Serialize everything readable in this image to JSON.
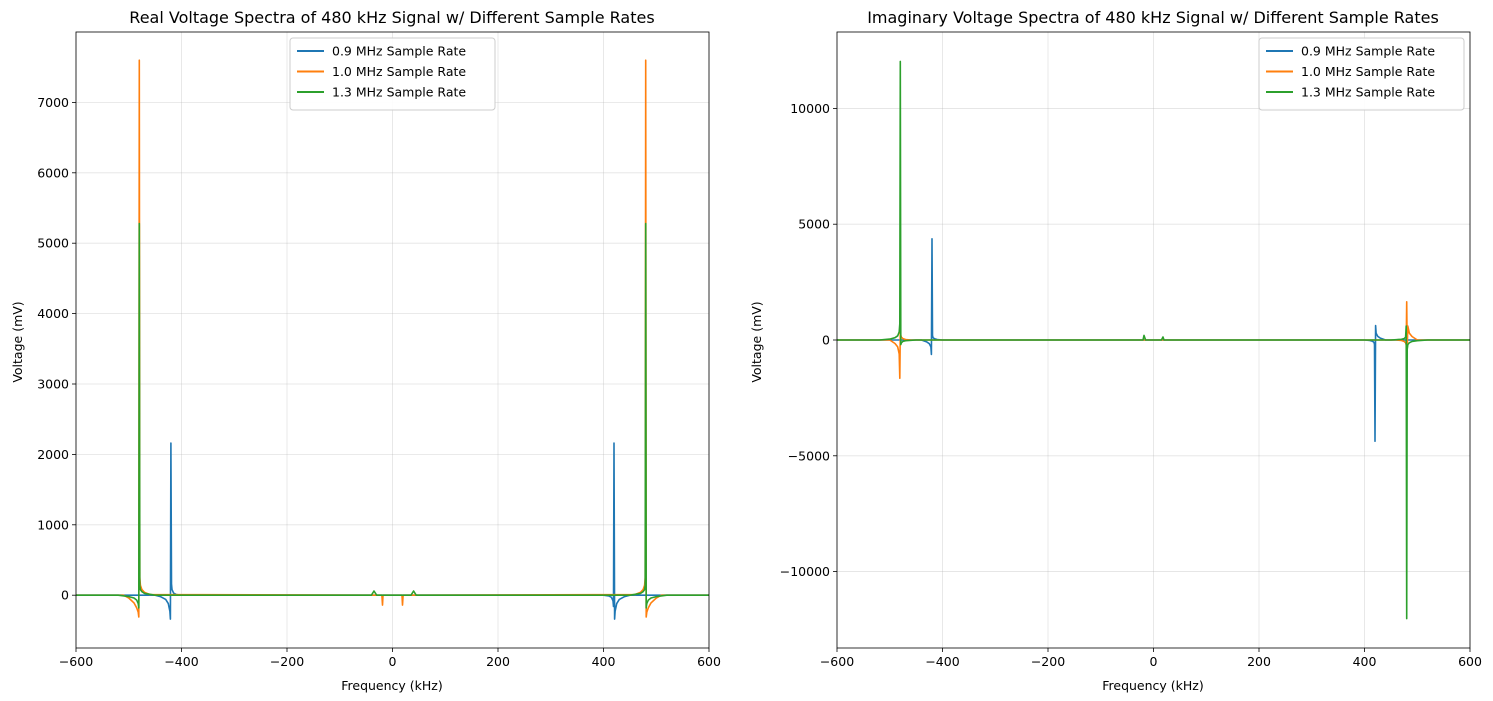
{
  "chart_data": [
    {
      "type": "line",
      "title": "Real Voltage Spectra of 480 kHz Signal w/ Different Sample Rates",
      "xlabel": "Frequency (kHz)",
      "ylabel": "Voltage (mV)",
      "xlim": [
        -600,
        600
      ],
      "ylim": [
        -750,
        8000
      ],
      "xticks": [
        -600,
        -400,
        -200,
        0,
        200,
        400,
        600
      ],
      "xtick_labels": [
        "−600",
        "−400",
        "−200",
        "0",
        "200",
        "400",
        "600"
      ],
      "yticks": [
        0,
        1000,
        2000,
        3000,
        4000,
        5000,
        6000,
        7000
      ],
      "ytick_labels": [
        "0",
        "1000",
        "2000",
        "3000",
        "4000",
        "5000",
        "6000",
        "7000"
      ],
      "grid": true,
      "legend_position": "top-center",
      "series": [
        {
          "name": "0.9 MHz Sample Rate",
          "color": "#1f77b4",
          "x": [
            -600,
            -450,
            -440,
            -430,
            -425,
            -422,
            -421,
            -420,
            -419,
            -418,
            -415,
            -410,
            -400,
            400,
            410,
            415,
            418,
            419,
            420,
            421,
            422,
            425,
            430,
            440,
            450,
            600
          ],
          "y": [
            0,
            0,
            -20,
            -60,
            -120,
            -230,
            -340,
            2160,
            160,
            80,
            30,
            10,
            0,
            0,
            -10,
            -30,
            -80,
            -160,
            2160,
            -340,
            -230,
            -120,
            -60,
            -20,
            0,
            0
          ]
        },
        {
          "name": "1.0 MHz Sample Rate",
          "color": "#ff7f0e",
          "x": [
            -600,
            -510,
            -500,
            -490,
            -485,
            -482,
            -481,
            -480,
            -479,
            -478,
            -475,
            -470,
            -460,
            -20,
            -19,
            -18,
            18,
            19,
            20,
            460,
            470,
            475,
            478,
            479,
            480,
            481,
            482,
            485,
            490,
            500,
            510,
            600
          ],
          "y": [
            0,
            0,
            -40,
            -110,
            -180,
            -240,
            -310,
            7600,
            250,
            140,
            80,
            40,
            10,
            0,
            -140,
            0,
            0,
            -140,
            0,
            10,
            40,
            80,
            140,
            250,
            7600,
            -310,
            -240,
            -180,
            -110,
            -40,
            0,
            0
          ]
        },
        {
          "name": "1.3 MHz Sample Rate",
          "color": "#2ca02c",
          "x": [
            -600,
            -520,
            -500,
            -490,
            -485,
            -482,
            -481,
            -480,
            -479,
            -478,
            -475,
            -470,
            -450,
            -40,
            -35,
            -30,
            0,
            35,
            40,
            45,
            450,
            470,
            475,
            478,
            479,
            480,
            481,
            482,
            485,
            490,
            500,
            520,
            600
          ],
          "y": [
            0,
            0,
            -20,
            -40,
            -70,
            -120,
            -180,
            5280,
            140,
            80,
            50,
            25,
            0,
            0,
            60,
            0,
            0,
            0,
            60,
            0,
            0,
            25,
            50,
            80,
            140,
            5280,
            -180,
            -120,
            -70,
            -40,
            -20,
            0,
            0
          ]
        }
      ]
    },
    {
      "type": "line",
      "title": "Imaginary Voltage Spectra of 480 kHz Signal w/ Different Sample Rates",
      "xlabel": "Frequency (kHz)",
      "ylabel": "Voltage (mV)",
      "xlim": [
        -600,
        600
      ],
      "ylim": [
        -13300,
        13300
      ],
      "xticks": [
        -600,
        -400,
        -200,
        0,
        200,
        400,
        600
      ],
      "xtick_labels": [
        "−600",
        "−400",
        "−200",
        "0",
        "200",
        "400",
        "600"
      ],
      "yticks": [
        -10000,
        -5000,
        0,
        5000,
        10000
      ],
      "ytick_labels": [
        "−10000",
        "−5000",
        "0",
        "5000",
        "10000"
      ],
      "grid": true,
      "legend_position": "top-right",
      "series": [
        {
          "name": "0.9 MHz Sample Rate",
          "color": "#1f77b4",
          "x": [
            -600,
            -440,
            -430,
            -425,
            -422,
            -421,
            -420,
            -419,
            -418,
            -415,
            -410,
            -400,
            400,
            410,
            415,
            418,
            419,
            420,
            421,
            422,
            425,
            430,
            440,
            600
          ],
          "y": [
            0,
            0,
            -80,
            -160,
            -300,
            -620,
            4370,
            200,
            100,
            50,
            20,
            0,
            0,
            -20,
            -50,
            -100,
            -200,
            -4370,
            620,
            300,
            160,
            80,
            0,
            0
          ]
        },
        {
          "name": "1.0 MHz Sample Rate",
          "color": "#ff7f0e",
          "x": [
            -600,
            -500,
            -490,
            -485,
            -482,
            -481,
            -480,
            -479,
            -478,
            -475,
            -470,
            -460,
            460,
            470,
            475,
            478,
            479,
            480,
            481,
            482,
            485,
            490,
            500,
            600
          ],
          "y": [
            0,
            0,
            -150,
            -300,
            -600,
            -1650,
            400,
            200,
            120,
            60,
            20,
            0,
            0,
            -20,
            -60,
            -120,
            -200,
            1650,
            -400,
            600,
            300,
            150,
            0,
            0
          ]
        },
        {
          "name": "1.3 MHz Sample Rate",
          "color": "#2ca02c",
          "x": [
            -600,
            -520,
            -500,
            -490,
            -485,
            -482,
            -481,
            -480,
            -479,
            -478,
            -475,
            -470,
            -450,
            -20,
            -18,
            -15,
            15,
            18,
            20,
            450,
            470,
            475,
            478,
            479,
            480,
            481,
            482,
            485,
            490,
            500,
            520,
            600
          ],
          "y": [
            0,
            0,
            40,
            100,
            180,
            350,
            700,
            12030,
            -200,
            -120,
            -60,
            -30,
            0,
            0,
            200,
            0,
            0,
            130,
            0,
            0,
            30,
            60,
            120,
            600,
            -12030,
            -400,
            -200,
            -120,
            -60,
            -30,
            0,
            0
          ]
        }
      ]
    }
  ]
}
